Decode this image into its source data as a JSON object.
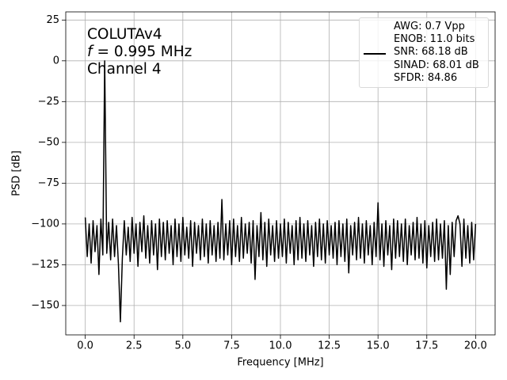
{
  "chart_data": {
    "type": "line",
    "xlabel": "Frequency [MHz]",
    "ylabel": "PSD [dB]",
    "annotation": {
      "line1": "COLUTAv4",
      "italic": "f",
      "line2": "= 0.995 MHz",
      "line3": "Channel 4"
    },
    "xlim": [
      -1.0,
      21.0
    ],
    "ylim": [
      -168,
      30
    ],
    "xticks": [
      {
        "value": 0,
        "label": "0.0"
      },
      2.5,
      {
        "value": 5,
        "label": "5.0"
      },
      7.5,
      {
        "value": 10,
        "label": "10.0"
      },
      12.5,
      {
        "value": 15,
        "label": "15.0"
      },
      17.5,
      {
        "value": 20,
        "label": "20.0"
      }
    ],
    "yticks": [
      25,
      0,
      {
        "value": -25,
        "label": "−25"
      },
      {
        "value": -50,
        "label": "−50"
      },
      {
        "value": -75,
        "label": "−75"
      },
      {
        "value": -100,
        "label": "−100"
      },
      {
        "value": -125,
        "label": "−125"
      },
      {
        "value": -150,
        "label": "−150"
      }
    ],
    "grid": true,
    "legend": "upper right",
    "x": [
      0.0,
      0.1,
      0.2,
      0.3,
      0.4,
      0.5,
      0.6,
      0.7,
      0.8,
      0.9,
      0.995,
      1.1,
      1.2,
      1.3,
      1.4,
      1.5,
      1.6,
      1.7,
      1.8,
      1.9,
      2.0,
      2.1,
      2.2,
      2.3,
      2.4,
      2.5,
      2.6,
      2.7,
      2.8,
      2.9,
      3.0,
      3.1,
      3.2,
      3.3,
      3.4,
      3.5,
      3.6,
      3.7,
      3.8,
      3.9,
      4.0,
      4.1,
      4.2,
      4.3,
      4.4,
      4.5,
      4.6,
      4.7,
      4.8,
      4.9,
      5.0,
      5.1,
      5.2,
      5.3,
      5.4,
      5.5,
      5.6,
      5.7,
      5.8,
      5.9,
      6.0,
      6.1,
      6.2,
      6.3,
      6.4,
      6.5,
      6.6,
      6.7,
      6.8,
      6.9,
      7.0,
      7.1,
      7.2,
      7.3,
      7.4,
      7.5,
      7.6,
      7.7,
      7.8,
      7.9,
      8.0,
      8.1,
      8.2,
      8.3,
      8.4,
      8.5,
      8.6,
      8.7,
      8.8,
      8.9,
      9.0,
      9.1,
      9.2,
      9.3,
      9.4,
      9.5,
      9.6,
      9.7,
      9.8,
      9.9,
      10.0,
      10.1,
      10.2,
      10.3,
      10.4,
      10.5,
      10.6,
      10.7,
      10.8,
      10.9,
      11.0,
      11.1,
      11.2,
      11.3,
      11.4,
      11.5,
      11.6,
      11.7,
      11.8,
      11.9,
      12.0,
      12.1,
      12.2,
      12.3,
      12.4,
      12.5,
      12.6,
      12.7,
      12.8,
      12.9,
      13.0,
      13.1,
      13.2,
      13.3,
      13.4,
      13.5,
      13.6,
      13.7,
      13.8,
      13.9,
      14.0,
      14.1,
      14.2,
      14.3,
      14.4,
      14.5,
      14.6,
      14.7,
      14.8,
      14.9,
      15.0,
      15.1,
      15.2,
      15.3,
      15.4,
      15.5,
      15.6,
      15.7,
      15.8,
      15.9,
      16.0,
      16.1,
      16.2,
      16.3,
      16.4,
      16.5,
      16.6,
      16.7,
      16.8,
      16.9,
      17.0,
      17.1,
      17.2,
      17.3,
      17.4,
      17.5,
      17.6,
      17.7,
      17.8,
      17.9,
      18.0,
      18.1,
      18.2,
      18.3,
      18.4,
      18.5,
      18.6,
      18.7,
      18.8,
      18.9,
      19.0,
      19.1,
      19.2,
      19.3,
      19.4,
      19.5,
      19.6,
      19.7,
      19.8,
      19.9,
      20.0
    ],
    "series": [
      {
        "name": "AWG: 0.7 Vpp\nENOB: 11.0 bits\nSNR: 68.18 dB\nSINAD: 68.01 dB\nSFDR: 84.86",
        "color": "#000000",
        "values": [
          -96,
          -120,
          -100,
          -124,
          -98,
          -117,
          -101,
          -131,
          -97,
          -119,
          0,
          -118,
          -99,
          -122,
          -97,
          -120,
          -101,
          -125,
          -160,
          -121,
          -98,
          -119,
          -102,
          -123,
          -96,
          -118,
          -100,
          -126,
          -99,
          -117,
          -95,
          -121,
          -101,
          -124,
          -98,
          -119,
          -100,
          -128,
          -97,
          -120,
          -99,
          -122,
          -98,
          -118,
          -101,
          -125,
          -97,
          -120,
          -100,
          -123,
          -96,
          -119,
          -102,
          -121,
          -98,
          -126,
          -99,
          -118,
          -101,
          -122,
          -97,
          -120,
          -100,
          -124,
          -98,
          -119,
          -101,
          -123,
          -99,
          -121,
          -85,
          -122,
          -100,
          -119,
          -98,
          -125,
          -97,
          -120,
          -101,
          -123,
          -96,
          -121,
          -100,
          -118,
          -99,
          -124,
          -98,
          -134,
          -101,
          -120,
          -93,
          -122,
          -99,
          -126,
          -97,
          -119,
          -101,
          -123,
          -98,
          -121,
          -100,
          -120,
          -97,
          -124,
          -99,
          -118,
          -101,
          -125,
          -98,
          -122,
          -96,
          -121,
          -100,
          -123,
          -98,
          -119,
          -101,
          -126,
          -99,
          -120,
          -97,
          -122,
          -100,
          -124,
          -98,
          -119,
          -101,
          -121,
          -99,
          -125,
          -98,
          -120,
          -100,
          -123,
          -97,
          -130,
          -101,
          -119,
          -99,
          -122,
          -96,
          -121,
          -100,
          -124,
          -98,
          -119,
          -101,
          -125,
          -99,
          -120,
          -87,
          -122,
          -100,
          -126,
          -98,
          -119,
          -101,
          -128,
          -97,
          -121,
          -98,
          -120,
          -100,
          -123,
          -97,
          -125,
          -101,
          -119,
          -99,
          -122,
          -96,
          -121,
          -100,
          -124,
          -98,
          -127,
          -101,
          -120,
          -99,
          -123,
          -97,
          -122,
          -100,
          -121,
          -98,
          -140,
          -101,
          -131,
          -99,
          -120,
          -98,
          -95,
          -100,
          -126,
          -97,
          -121,
          -101,
          -124,
          -99,
          -122,
          -100
        ]
      }
    ]
  }
}
